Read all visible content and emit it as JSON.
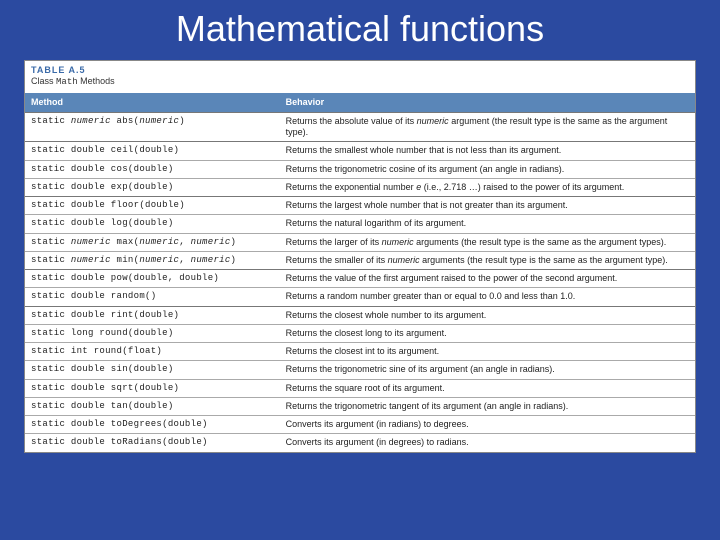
{
  "colors": {
    "slide_bg": "#2b4aa0",
    "table_bg": "#ffffff",
    "header_row_bg": "#5a86b8",
    "header_row_text": "#ffffff",
    "caption_color": "#3a6aa8",
    "cell_border": "#aaaaaa",
    "group_border": "#777777",
    "text": "#222222"
  },
  "title": "Mathematical functions",
  "table": {
    "caption": "TABLE A.5",
    "subtitle_prefix": "Class ",
    "subtitle_code": "Math",
    "subtitle_suffix": " Methods",
    "columns": [
      "Method",
      "Behavior"
    ],
    "rows": [
      {
        "group_start": true,
        "method_html": "static <i>numeric</i> abs(<i>numeric</i>)",
        "behavior_html": "Returns the absolute value of its <i>numeric</i> argument (the result type is the same as the argument type)."
      },
      {
        "group_start": true,
        "method_html": "static double ceil(double)",
        "behavior_html": "Returns the smallest whole number that is not less than its argument."
      },
      {
        "group_start": false,
        "method_html": "static double cos(double)",
        "behavior_html": "Returns the trigonometric cosine of its argument (an angle in radians)."
      },
      {
        "group_start": false,
        "method_html": "static double exp(double)",
        "behavior_html": "Returns the exponential number <i>e</i> (i.e., 2.718 …) raised to the power of its argument."
      },
      {
        "group_start": true,
        "method_html": "static double floor(double)",
        "behavior_html": "Returns the largest whole number that is not greater than its argument."
      },
      {
        "group_start": false,
        "method_html": "static double log(double)",
        "behavior_html": "Returns the natural logarithm of its argument."
      },
      {
        "group_start": false,
        "method_html": "static <i>numeric</i> max(<i>numeric</i>, <i>numeric</i>)",
        "behavior_html": "Returns the larger of its <i>numeric</i> arguments (the result type is the same as the argument types)."
      },
      {
        "group_start": false,
        "method_html": "static <i>numeric</i> min(<i>numeric</i>, <i>numeric</i>)",
        "behavior_html": "Returns the smaller of its <i>numeric</i> arguments (the result type is the same as the argument type)."
      },
      {
        "group_start": true,
        "method_html": "static double pow(double, double)",
        "behavior_html": "Returns the value of the first argument raised to the power of the second argument."
      },
      {
        "group_start": false,
        "method_html": "static double random()",
        "behavior_html": "Returns a random number greater than or equal to 0.0 and less than 1.0."
      },
      {
        "group_start": true,
        "method_html": "static double rint(double)",
        "behavior_html": "Returns the closest whole number to its argument."
      },
      {
        "group_start": false,
        "method_html": "static long round(double)",
        "behavior_html": "Returns the closest long to its argument."
      },
      {
        "group_start": false,
        "method_html": "static int round(float)",
        "behavior_html": "Returns the closest int to its argument."
      },
      {
        "group_start": false,
        "method_html": "static double sin(double)",
        "behavior_html": "Returns the trigonometric sine of its argument (an angle in radians)."
      },
      {
        "group_start": false,
        "method_html": "static double sqrt(double)",
        "behavior_html": "Returns the square root of its argument."
      },
      {
        "group_start": false,
        "method_html": "static double tan(double)",
        "behavior_html": "Returns the trigonometric tangent of its argument (an angle in radians)."
      },
      {
        "group_start": false,
        "method_html": "static double toDegrees(double)",
        "behavior_html": "Converts its argument (in radians) to degrees."
      },
      {
        "group_start": false,
        "method_html": "static double toRadians(double)",
        "behavior_html": "Converts its argument (in degrees) to radians."
      }
    ]
  }
}
